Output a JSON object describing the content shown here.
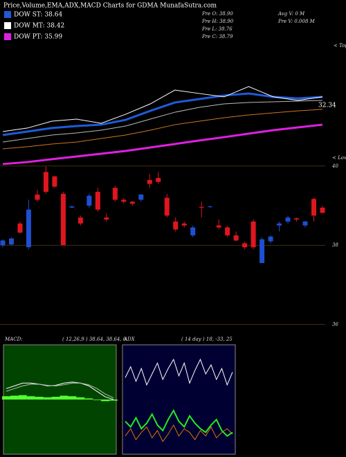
{
  "header": {
    "title": "Price,Volume,EMA,ADX,MACD Charts for GDMA MunafaSutra.com"
  },
  "legend": [
    {
      "label": "DOW ST: 38.64",
      "color": "#1f5bd8"
    },
    {
      "label": "DOW MT: 38.42",
      "color": "#ffffff"
    },
    {
      "label": "DOW PT: 35.99",
      "color": "#e020e0"
    }
  ],
  "quote": [
    "Pre  O: 38.90",
    "Pre  H: 38.90",
    "Pre  L: 38.76",
    "Pre  C: 38.79",
    "Avg  V: 0  M",
    "Pre  V: 0.008 M"
  ],
  "chart_data": [
    {
      "type": "line",
      "ylim": [
        0,
        100
      ],
      "annotations": [
        "< Tops",
        "32.34",
        "< Lows"
      ],
      "series": [
        {
          "color": "#cc7722",
          "width": 1,
          "values": [
            13.9,
            15.6,
            17.8,
            19.4,
            22.2,
            25,
            28.9,
            33.3,
            36.1,
            38.9,
            41.1,
            42.8,
            44.4,
            45.6
          ]
        },
        {
          "color": "#e020e0",
          "width": 3,
          "values": [
            1.7,
            3.3,
            5.6,
            7.8,
            10,
            12.2,
            15,
            17.8,
            20.6,
            23.3,
            26.1,
            28.9,
            31.1,
            33.3
          ]
        },
        {
          "color": "#bbbbbb",
          "width": 1,
          "values": [
            19.4,
            22.2,
            25,
            26.7,
            28.9,
            32.2,
            37.8,
            43.3,
            47.2,
            50,
            51.1,
            51.7,
            52.2,
            52.8
          ]
        },
        {
          "color": "#1f5bd8",
          "width": 3,
          "values": [
            25,
            27.8,
            30.6,
            32.2,
            33.3,
            37.2,
            44.4,
            51.1,
            53.9,
            56.7,
            58.3,
            55.6,
            54.4,
            55.6
          ]
        },
        {
          "color": "#ffffff",
          "width": 1,
          "values": [
            27.8,
            30.6,
            36.1,
            37.8,
            34.4,
            41.7,
            50,
            61.1,
            58.3,
            55.6,
            63.9,
            55.6,
            52.8,
            55.6
          ]
        }
      ]
    },
    {
      "type": "candlestick",
      "ylim": [
        35.8,
        40.05
      ],
      "yticks": [
        36,
        38,
        40
      ],
      "up_color": "#1e4fd0",
      "down_color": "#e0161e",
      "open": [
        38.0,
        38.02,
        38.55,
        37.95,
        39.28,
        39.85,
        39.74,
        39.3,
        38.95,
        38.7,
        39.0,
        39.35,
        38.7,
        39.45,
        39.15,
        39.1,
        39.15,
        39.65,
        39.7,
        39.2,
        38.6,
        38.55,
        38.25,
        38.97,
        38.98,
        38.5,
        38.45,
        38.25,
        38.05,
        38.6,
        37.55,
        38.1,
        38.5,
        38.6,
        38.68,
        38.5,
        39.17,
        38.95
      ],
      "high": [
        38.15,
        38.2,
        38.6,
        39.15,
        39.4,
        40.0,
        39.75,
        39.35,
        39.0,
        38.75,
        39.3,
        39.45,
        38.8,
        39.5,
        39.2,
        39.12,
        39.3,
        39.8,
        39.85,
        39.3,
        38.7,
        38.6,
        38.5,
        39.1,
        39.0,
        38.65,
        38.5,
        38.35,
        38.1,
        38.65,
        38.2,
        38.25,
        38.6,
        38.75,
        38.7,
        38.62,
        39.2,
        39.0
      ],
      "low": [
        37.95,
        38.0,
        38.3,
        37.9,
        39.1,
        39.3,
        39.45,
        38.0,
        38.95,
        38.5,
        38.95,
        38.85,
        38.6,
        39.1,
        39.05,
        39.0,
        39.1,
        39.45,
        39.55,
        38.7,
        38.35,
        38.45,
        38.2,
        38.7,
        38.95,
        38.4,
        38.2,
        38.1,
        37.9,
        37.9,
        37.55,
        38.05,
        38.35,
        38.55,
        38.6,
        38.45,
        38.6,
        38.8
      ],
      "close": [
        38.12,
        38.17,
        38.32,
        38.9,
        39.15,
        39.35,
        39.48,
        38.0,
        38.98,
        38.55,
        39.25,
        38.9,
        38.65,
        39.15,
        39.1,
        39.05,
        39.28,
        39.55,
        39.6,
        38.75,
        38.4,
        38.5,
        38.45,
        38.95,
        38.98,
        38.45,
        38.25,
        38.12,
        37.95,
        37.95,
        38.15,
        38.22,
        38.55,
        38.7,
        38.65,
        38.6,
        38.75,
        38.82
      ]
    },
    {
      "type": "macd",
      "title": "MACD:",
      "params": "( 12,26,9 ) 38.64, 38.64, 0",
      "ylim": [
        -10,
        10
      ],
      "bg": "#004400",
      "hist_color": "#55ff33",
      "histogram": [
        0.6,
        0.7,
        0.8,
        0.6,
        0.5,
        0.4,
        0.5,
        0.7,
        0.6,
        0.4,
        0.2,
        -0.1,
        -0.3,
        -0.2
      ],
      "series": [
        {
          "color": "#ffffff",
          "values": [
            2,
            2.5,
            3,
            3,
            2.8,
            2.5,
            2.6,
            3,
            3.2,
            3,
            2.5,
            1.5,
            0.5,
            0
          ]
        },
        {
          "color": "#bbbbbb",
          "values": [
            1.5,
            2,
            2.5,
            2.8,
            2.8,
            2.6,
            2.5,
            2.7,
            3,
            3,
            2.7,
            2,
            1,
            0.3
          ]
        }
      ]
    },
    {
      "type": "line",
      "title": "ADX",
      "params": "( 14 day ) 18, -33, 25",
      "ylim": [
        0,
        60
      ],
      "bg": "#000033",
      "series": [
        {
          "color": "#ffffff",
          "width": 1,
          "values": [
            42,
            48,
            40,
            47,
            38,
            44,
            50,
            41,
            47,
            52,
            43,
            50,
            39,
            46,
            52,
            44,
            49,
            41,
            47,
            38,
            45
          ]
        },
        {
          "color": "#dd7700",
          "width": 1,
          "values": [
            10,
            14,
            8,
            12,
            15,
            9,
            13,
            7,
            11,
            16,
            10,
            14,
            12,
            8,
            13,
            10,
            15,
            9,
            12,
            14,
            11
          ]
        },
        {
          "color": "#22ee22",
          "width": 2,
          "values": [
            18,
            15,
            20,
            14,
            17,
            22,
            16,
            13,
            19,
            24,
            18,
            15,
            21,
            17,
            14,
            12,
            16,
            19,
            13,
            10,
            12
          ]
        }
      ]
    }
  ]
}
